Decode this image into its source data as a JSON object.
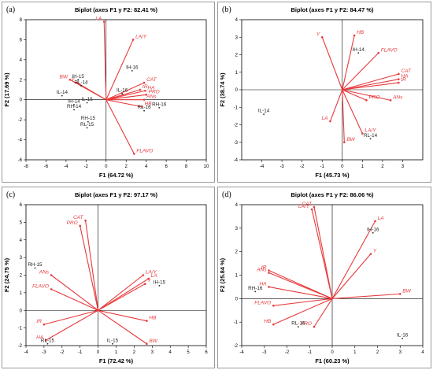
{
  "chart_data": [
    {
      "type": "scatter",
      "panel_label": "(a)",
      "title": "Biplot (axes F1 y F2: 82.41 %)",
      "xlabel": "F1 (64.72 %)",
      "ylabel": "F2 (17.69 %)",
      "xlim": [
        -8,
        10
      ],
      "ylim": [
        -6,
        8
      ],
      "xticks": [
        -8,
        -6,
        -4,
        -2,
        0,
        2,
        4,
        6,
        8,
        10
      ],
      "yticks": [
        -6,
        -4,
        -2,
        0,
        2,
        4,
        6,
        8
      ],
      "grid": false,
      "variables": [
        {
          "label": "LA",
          "x": -0.2,
          "y": 7.8
        },
        {
          "label": "LA/Y",
          "x": 2.7,
          "y": 6.0
        },
        {
          "label": "BW",
          "x": -3.6,
          "y": 2.0
        },
        {
          "label": "Y",
          "x": -2.9,
          "y": 1.7
        },
        {
          "label": "CAT",
          "x": 3.8,
          "y": 1.7
        },
        {
          "label": "tR",
          "x": 3.4,
          "y": 1.0
        },
        {
          "label": "HA",
          "x": 3.9,
          "y": 0.9
        },
        {
          "label": "PRO",
          "x": 4.0,
          "y": 0.5
        },
        {
          "label": "ANs",
          "x": 3.8,
          "y": 0.0
        },
        {
          "label": "HB",
          "x": 3.6,
          "y": -0.7
        },
        {
          "label": "FLAVO",
          "x": 2.8,
          "y": -5.4
        }
      ],
      "observations": [
        {
          "label": "IH-16",
          "x": 2.6,
          "y": 2.9
        },
        {
          "label": "IH-15",
          "x": -2.8,
          "y": 2.0
        },
        {
          "label": "RL-14",
          "x": -2.5,
          "y": 1.4
        },
        {
          "label": "IL-14",
          "x": -4.4,
          "y": 0.4
        },
        {
          "label": "IL-16",
          "x": 1.6,
          "y": 0.6
        },
        {
          "label": "IL-15",
          "x": -1.9,
          "y": -0.3
        },
        {
          "label": "IH-14",
          "x": -3.2,
          "y": -0.5
        },
        {
          "label": "RH-14",
          "x": -3.2,
          "y": -1.0
        },
        {
          "label": "RH-16",
          "x": 5.3,
          "y": -0.8
        },
        {
          "label": "RL-16",
          "x": 3.8,
          "y": -1.1
        },
        {
          "label": "RH-15",
          "x": -1.8,
          "y": -2.2
        },
        {
          "label": "RL-15",
          "x": -1.9,
          "y": -2.8
        }
      ]
    },
    {
      "type": "scatter",
      "panel_label": "(b)",
      "title": "Biplot (axes F1 y F2: 84.47 %)",
      "xlabel": "F1 (45.73 %)",
      "ylabel": "F2 (38.74 %)",
      "xlim": [
        -5,
        4
      ],
      "ylim": [
        -4,
        4
      ],
      "xticks": [
        -4,
        -3,
        -2,
        -1,
        0,
        1,
        2,
        3
      ],
      "yticks": [
        -4,
        -3,
        -2,
        -1,
        0,
        1,
        2,
        3,
        4
      ],
      "grid": false,
      "variables": [
        {
          "label": "Y",
          "x": -1.0,
          "y": 3.0
        },
        {
          "label": "HB",
          "x": 0.6,
          "y": 3.1
        },
        {
          "label": "FLAVO",
          "x": 1.8,
          "y": 2.1
        },
        {
          "label": "CAT",
          "x": 2.8,
          "y": 0.9
        },
        {
          "label": "HA",
          "x": 2.8,
          "y": 0.6
        },
        {
          "label": "tR",
          "x": 2.8,
          "y": 0.4
        },
        {
          "label": "PRO",
          "x": 1.2,
          "y": -0.6
        },
        {
          "label": "ANs",
          "x": 2.4,
          "y": -0.6
        },
        {
          "label": "LA",
          "x": -0.6,
          "y": -1.8
        },
        {
          "label": "LA/Y",
          "x": 1.0,
          "y": -2.5
        },
        {
          "label": "BW",
          "x": 0.1,
          "y": -3.0
        }
      ],
      "observations": [
        {
          "label": "RL-14",
          "x": 1.4,
          "y": -2.8
        },
        {
          "label": "IH-14",
          "x": 0.8,
          "y": 2.1
        },
        {
          "label": "IL-14",
          "x": -3.9,
          "y": -1.4
        }
      ]
    },
    {
      "type": "scatter",
      "panel_label": "(c)",
      "title": "Biplot (axes F1 y F2: 97.17 %)",
      "xlabel": "F1 (72.42 %)",
      "ylabel": "F2 (24.75 %)",
      "xlim": [
        -4,
        6
      ],
      "ylim": [
        -2,
        6
      ],
      "xticks": [
        -4,
        -3,
        -2,
        -1,
        0,
        1,
        2,
        3,
        4,
        5,
        6
      ],
      "yticks": [
        -2,
        -1,
        0,
        1,
        2,
        3,
        4,
        5,
        6
      ],
      "grid": false,
      "variables": [
        {
          "label": "CAT",
          "x": -0.7,
          "y": 5.1
        },
        {
          "label": "PRO",
          "x": -1.0,
          "y": 4.8
        },
        {
          "label": "ANs",
          "x": -2.6,
          "y": 2.0
        },
        {
          "label": "FLAVO",
          "x": -2.6,
          "y": 1.2
        },
        {
          "label": "LA/Y",
          "x": 2.5,
          "y": 2.0
        },
        {
          "label": "LA",
          "x": 2.8,
          "y": 1.8
        },
        {
          "label": "Y",
          "x": 2.6,
          "y": 1.5
        },
        {
          "label": "HB",
          "x": 2.7,
          "y": -0.6
        },
        {
          "label": "BW",
          "x": 2.7,
          "y": -1.9
        },
        {
          "label": "tR",
          "x": -3.0,
          "y": -0.8
        },
        {
          "label": "HA",
          "x": -2.9,
          "y": -1.7
        }
      ],
      "observations": [
        {
          "label": "RH-15",
          "x": -3.5,
          "y": 2.4
        },
        {
          "label": "IH-15",
          "x": 3.4,
          "y": 1.4
        },
        {
          "label": "RL-15",
          "x": -2.8,
          "y": -1.9
        },
        {
          "label": "IL-15",
          "x": 0.8,
          "y": -1.9
        }
      ]
    },
    {
      "type": "scatter",
      "panel_label": "(d)",
      "title": "Biplot (axes F1 y F2: 86.06 %)",
      "xlabel": "F1 (60.23 %)",
      "ylabel": "F2 (25.84 %)",
      "xlim": [
        -4,
        4
      ],
      "ylim": [
        -2,
        4
      ],
      "xticks": [
        -4,
        -3,
        -2,
        -1,
        0,
        1,
        2,
        3,
        4
      ],
      "yticks": [
        -2,
        -1,
        0,
        1,
        2,
        3,
        4
      ],
      "grid": false,
      "variables": [
        {
          "label": "CAT",
          "x": -0.8,
          "y": 3.9
        },
        {
          "label": "LA/Y",
          "x": -0.9,
          "y": 3.8
        },
        {
          "label": "LA",
          "x": 1.9,
          "y": 3.3
        },
        {
          "label": "Y",
          "x": 1.7,
          "y": 1.9
        },
        {
          "label": "tR",
          "x": -2.8,
          "y": 1.2
        },
        {
          "label": "ANs",
          "x": -2.8,
          "y": 1.1
        },
        {
          "label": "HA",
          "x": -2.8,
          "y": 0.5
        },
        {
          "label": "BW",
          "x": 3.0,
          "y": 0.2
        },
        {
          "label": "FLAVO",
          "x": -2.6,
          "y": -0.3
        },
        {
          "label": "HB",
          "x": -2.6,
          "y": -1.1
        },
        {
          "label": "PRO",
          "x": -0.8,
          "y": -1.2
        }
      ],
      "observations": [
        {
          "label": "IH-16",
          "x": 1.8,
          "y": 2.8
        },
        {
          "label": "RH-16",
          "x": -3.4,
          "y": 0.3
        },
        {
          "label": "RL-16",
          "x": -1.5,
          "y": -1.2
        },
        {
          "label": "IL-16",
          "x": 3.1,
          "y": -1.7
        }
      ]
    }
  ]
}
